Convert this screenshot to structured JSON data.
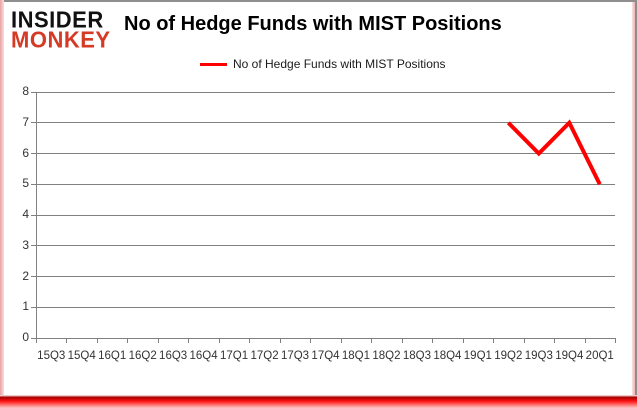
{
  "brand": {
    "line1": "INSIDER",
    "line2": "MONKEY",
    "red": "#d43a24"
  },
  "header": {
    "title": "No of Hedge Funds with MIST Positions"
  },
  "legend": {
    "label": "No of Hedge Funds with MIST Positions",
    "color": "#ff0000"
  },
  "colors": {
    "line": "#ff0000",
    "grid": "#808080",
    "axis_text": "#333333"
  },
  "chart_data": {
    "type": "line",
    "title": "No of Hedge Funds with MIST Positions",
    "categories": [
      "15Q3",
      "15Q4",
      "16Q1",
      "16Q2",
      "16Q3",
      "16Q4",
      "17Q1",
      "17Q2",
      "17Q3",
      "17Q4",
      "18Q1",
      "18Q2",
      "18Q3",
      "18Q4",
      "19Q1",
      "19Q2",
      "19Q3",
      "19Q4",
      "20Q1"
    ],
    "series": [
      {
        "name": "No of Hedge Funds with MIST Positions",
        "values": [
          null,
          null,
          null,
          null,
          null,
          null,
          null,
          null,
          null,
          null,
          null,
          null,
          null,
          null,
          null,
          7,
          6,
          7,
          5
        ]
      }
    ],
    "xlabel": "",
    "ylabel": "",
    "ylim": [
      0,
      8
    ],
    "yticks": [
      0,
      1,
      2,
      3,
      4,
      5,
      6,
      7,
      8
    ],
    "grid": true,
    "legend_position": "top-center",
    "line_width": 4
  }
}
